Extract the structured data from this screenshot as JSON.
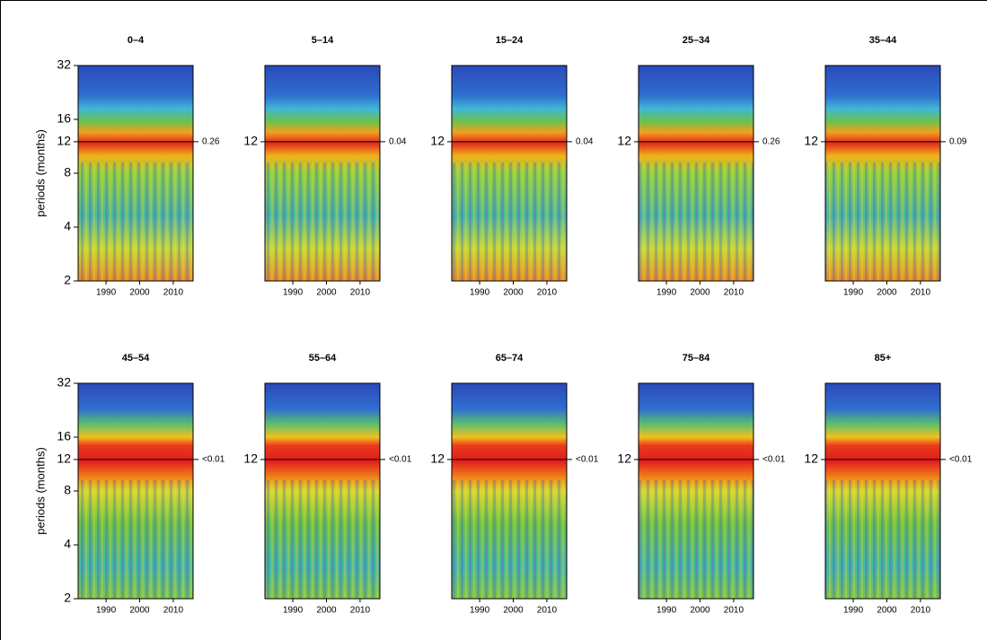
{
  "chart_data": [
    {
      "type": "heatmap",
      "title": "0–4",
      "ylabel": "periods (months)",
      "yscale": "log",
      "ylim": [
        2,
        32
      ],
      "yticks": [
        2,
        4,
        8,
        12,
        16,
        32
      ],
      "xlim": [
        1981.7,
        2015.9
      ],
      "xticks": [
        1990,
        2000,
        2010
      ],
      "annotation": "0.26"
    },
    {
      "type": "heatmap",
      "title": "5–14",
      "yscale": "log",
      "ylim": [
        2,
        32
      ],
      "yticks": [
        12
      ],
      "xlim": [
        1981.7,
        2015.9
      ],
      "xticks": [
        1990,
        2000,
        2010
      ],
      "annotation": "0.04"
    },
    {
      "type": "heatmap",
      "title": "15–24",
      "yscale": "log",
      "ylim": [
        2,
        32
      ],
      "yticks": [
        12
      ],
      "xlim": [
        1981.7,
        2015.9
      ],
      "xticks": [
        1990,
        2000,
        2010
      ],
      "annotation": "0.04"
    },
    {
      "type": "heatmap",
      "title": "25–34",
      "yscale": "log",
      "ylim": [
        2,
        32
      ],
      "yticks": [
        12
      ],
      "xlim": [
        1981.7,
        2015.9
      ],
      "xticks": [
        1990,
        2000,
        2010
      ],
      "annotation": "0.26"
    },
    {
      "type": "heatmap",
      "title": "35–44",
      "yscale": "log",
      "ylim": [
        2,
        32
      ],
      "yticks": [
        12
      ],
      "xlim": [
        1981.7,
        2015.9
      ],
      "xticks": [
        1990,
        2000,
        2010
      ],
      "annotation": "0.09"
    },
    {
      "type": "heatmap",
      "title": "45–54",
      "ylabel": "periods (months)",
      "yscale": "log",
      "ylim": [
        2,
        32
      ],
      "yticks": [
        2,
        4,
        8,
        12,
        16,
        32
      ],
      "xlim": [
        1981.7,
        2015.9
      ],
      "xticks": [
        1990,
        2000,
        2010
      ],
      "annotation": "<0.01"
    },
    {
      "type": "heatmap",
      "title": "55–64",
      "yscale": "log",
      "ylim": [
        2,
        32
      ],
      "yticks": [
        12
      ],
      "xlim": [
        1981.7,
        2015.9
      ],
      "xticks": [
        1990,
        2000,
        2010
      ],
      "annotation": "<0.01"
    },
    {
      "type": "heatmap",
      "title": "65–74",
      "yscale": "log",
      "ylim": [
        2,
        32
      ],
      "yticks": [
        12
      ],
      "xlim": [
        1981.7,
        2015.9
      ],
      "xticks": [
        1990,
        2000,
        2010
      ],
      "annotation": "<0.01"
    },
    {
      "type": "heatmap",
      "title": "75–84",
      "yscale": "log",
      "ylim": [
        2,
        32
      ],
      "yticks": [
        12
      ],
      "xlim": [
        1981.7,
        2015.9
      ],
      "xticks": [
        1990,
        2000,
        2010
      ],
      "annotation": "<0.01"
    },
    {
      "type": "heatmap",
      "title": "85+",
      "yscale": "log",
      "ylim": [
        2,
        32
      ],
      "yticks": [
        12
      ],
      "xlim": [
        1981.7,
        2015.9
      ],
      "xticks": [
        1990,
        2000,
        2010
      ],
      "annotation": "<0.01"
    }
  ]
}
